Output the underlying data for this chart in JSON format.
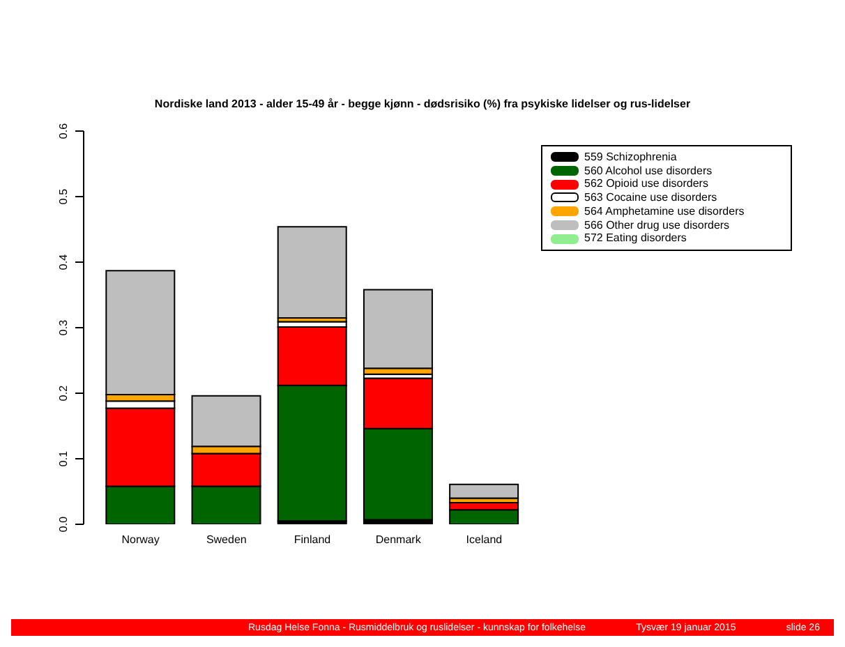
{
  "chart_data": {
    "type": "bar",
    "stacked": true,
    "title": "Nordiske land 2013 - alder 15-49 år - begge kjønn - dødsrisiko (%) fra psykiske lidelser og rus-lidelser",
    "categories": [
      "Norway",
      "Sweden",
      "Finland",
      "Denmark",
      "Iceland"
    ],
    "series": [
      {
        "name": "559 Schizophrenia",
        "color": "#000000",
        "values": [
          null,
          null,
          0.005,
          0.007,
          null
        ]
      },
      {
        "name": "560 Alcohol use disorders",
        "color": "#006400",
        "values": [
          0.058,
          0.058,
          0.207,
          0.139,
          0.022
        ]
      },
      {
        "name": "562 Opioid use disorders",
        "color": "#ff0000",
        "values": [
          0.119,
          0.05,
          0.089,
          0.077,
          0.011
        ]
      },
      {
        "name": "563 Cocaine use disorders",
        "color": "#ffffff",
        "values": [
          0.011,
          null,
          0.008,
          0.006,
          null
        ]
      },
      {
        "name": "564 Amphetamine use disorders",
        "color": "#ffa500",
        "values": [
          0.01,
          0.011,
          0.006,
          0.009,
          0.007
        ]
      },
      {
        "name": "566 Other drug use disorders",
        "color": "#bebebe",
        "values": [
          0.189,
          0.077,
          0.139,
          0.12,
          0.021
        ]
      },
      {
        "name": "572 Eating disorders",
        "color": "#90ee90",
        "values": [
          0,
          0,
          0,
          0,
          0
        ]
      }
    ],
    "ylim": [
      0,
      0.6
    ],
    "yticks": [
      {
        "value": 0,
        "label": "0.0"
      },
      0.1,
      0.2,
      0.3,
      0.4,
      0.5,
      0.6
    ],
    "grid": false,
    "legend": "top right",
    "annotations": [
      "Rusdag Helse Fonna - Rusmiddelbruk og ruslidelser - kunnskap for folkehelse",
      "Tysvær 19 januar 2015",
      "slide 26"
    ]
  }
}
